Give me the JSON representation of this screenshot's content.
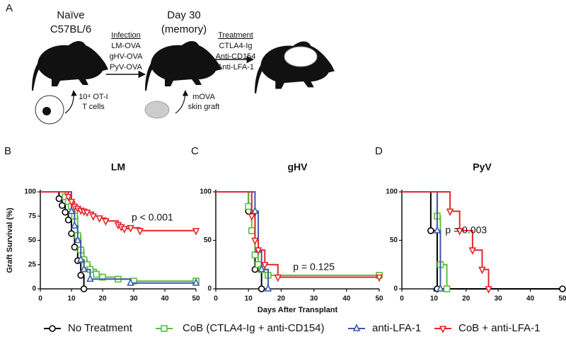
{
  "schematic": {
    "label": "A",
    "naive": [
      "Naïve",
      "C57BL/6"
    ],
    "infection": {
      "heading": "Infection",
      "items": [
        "LM-OVA",
        "gHV-OVA",
        "PyV-OVA"
      ]
    },
    "memory": [
      "Day 30",
      "(memory)"
    ],
    "treatment": {
      "heading": "Treatment",
      "items": [
        "CTLA4-Ig",
        "Anti-CD154",
        "Anti-LFA-1"
      ]
    },
    "cells": [
      "10⁴ OT-I",
      "T cells"
    ],
    "graft": [
      "mOVA",
      "skin graft"
    ]
  },
  "panels": [
    "B",
    "C",
    "D"
  ],
  "chart_data": [
    {
      "type": "line",
      "step": true,
      "title": "LM",
      "ylabel": "Graft Survival (%)",
      "xlim": [
        0,
        50
      ],
      "xticks": [
        0,
        10,
        20,
        30,
        40,
        50
      ],
      "ylim": [
        0,
        100
      ],
      "yticks": [
        0,
        25,
        50,
        75,
        100
      ],
      "annotation": {
        "text": "p < 0.001",
        "x": 36,
        "y": 73
      },
      "series": [
        {
          "name": "No Treatment",
          "color": "#000000",
          "marker": "circle",
          "x": [
            0,
            6,
            7,
            8,
            9,
            10,
            11,
            12,
            13,
            14
          ],
          "values": [
            100,
            93,
            86,
            79,
            71,
            57,
            43,
            29,
            14,
            0
          ]
        },
        {
          "name": "CoB (CTLA4-Ig + anti-CD154)",
          "color": "#5cbf3a",
          "marker": "square",
          "x": [
            0,
            8,
            9,
            10,
            11,
            12,
            13,
            14,
            15,
            16,
            18,
            20,
            25,
            30,
            50
          ],
          "values": [
            100,
            95,
            90,
            85,
            75,
            55,
            40,
            30,
            25,
            20,
            15,
            12,
            10,
            8,
            8
          ]
        },
        {
          "name": "anti-LFA-1",
          "color": "#3a5ca8",
          "marker": "triangle",
          "x": [
            0,
            10,
            11,
            12,
            13,
            14,
            16,
            29,
            50
          ],
          "values": [
            100,
            80,
            65,
            50,
            30,
            20,
            10,
            6,
            6
          ]
        },
        {
          "name": "CoB + anti-LFA-1",
          "color": "#e5262b",
          "marker": "triangle-down",
          "x": [
            0,
            9,
            10,
            11,
            12,
            13,
            14,
            15,
            17,
            19,
            21,
            25,
            26,
            27,
            29,
            32,
            50
          ],
          "values": [
            100,
            95,
            90,
            85,
            83,
            81,
            80,
            79,
            75,
            73,
            70,
            66,
            64,
            62,
            63,
            60,
            60
          ]
        }
      ]
    },
    {
      "type": "line",
      "step": true,
      "title": "gHV",
      "xlabel": "Days After Transplant",
      "xlim": [
        0,
        50
      ],
      "xticks": [
        0,
        10,
        20,
        30,
        40,
        50
      ],
      "ylim": [
        0,
        100
      ],
      "yticks": [
        0,
        50,
        100
      ],
      "annotation": {
        "text": "p = 0.125",
        "x": 30,
        "y": 22
      },
      "series": [
        {
          "name": "No Treatment",
          "color": "#000000",
          "marker": "circle",
          "x": [
            0,
            10,
            12,
            14
          ],
          "values": [
            100,
            80,
            20,
            0
          ]
        },
        {
          "name": "CoB (CTLA4-Ig + anti-CD154)",
          "color": "#5cbf3a",
          "marker": "square",
          "x": [
            0,
            10,
            11,
            12,
            13,
            14,
            16,
            50
          ],
          "values": [
            100,
            85,
            60,
            35,
            25,
            20,
            14,
            14
          ]
        },
        {
          "name": "anti-LFA-1",
          "color": "#3a5ca8",
          "marker": "triangle",
          "x": [
            0,
            12,
            13,
            14,
            16
          ],
          "values": [
            100,
            80,
            40,
            20,
            0
          ]
        },
        {
          "name": "CoB + anti-LFA-1",
          "color": "#e5262b",
          "marker": "triangle-down",
          "x": [
            0,
            11,
            12,
            13,
            15,
            19,
            50
          ],
          "values": [
            100,
            75,
            50,
            40,
            25,
            12,
            12
          ]
        }
      ]
    },
    {
      "type": "line",
      "step": true,
      "title": "PyV",
      "xlim": [
        0,
        50
      ],
      "xticks": [
        0,
        10,
        20,
        30,
        40,
        50
      ],
      "ylim": [
        0,
        100
      ],
      "yticks": [
        0,
        50,
        100
      ],
      "annotation": {
        "text": "p = 0.003",
        "x": 20,
        "y": 60
      },
      "series": [
        {
          "name": "No Treatment",
          "color": "#000000",
          "marker": "circle",
          "x": [
            0,
            9,
            11,
            50
          ],
          "values": [
            100,
            60,
            0,
            0
          ]
        },
        {
          "name": "CoB (CTLA4-Ig + anti-CD154)",
          "color": "#5cbf3a",
          "marker": "square",
          "x": [
            0,
            11,
            12,
            14
          ],
          "values": [
            100,
            75,
            25,
            0
          ]
        },
        {
          "name": "anti-LFA-1",
          "color": "#3a5ca8",
          "marker": "triangle",
          "x": [
            0,
            11,
            12
          ],
          "values": [
            100,
            60,
            0
          ]
        },
        {
          "name": "CoB + anti-LFA-1",
          "color": "#e5262b",
          "marker": "triangle-down",
          "x": [
            0,
            15,
            18,
            22,
            25,
            27
          ],
          "values": [
            100,
            80,
            60,
            40,
            20,
            0
          ]
        }
      ]
    }
  ]
}
